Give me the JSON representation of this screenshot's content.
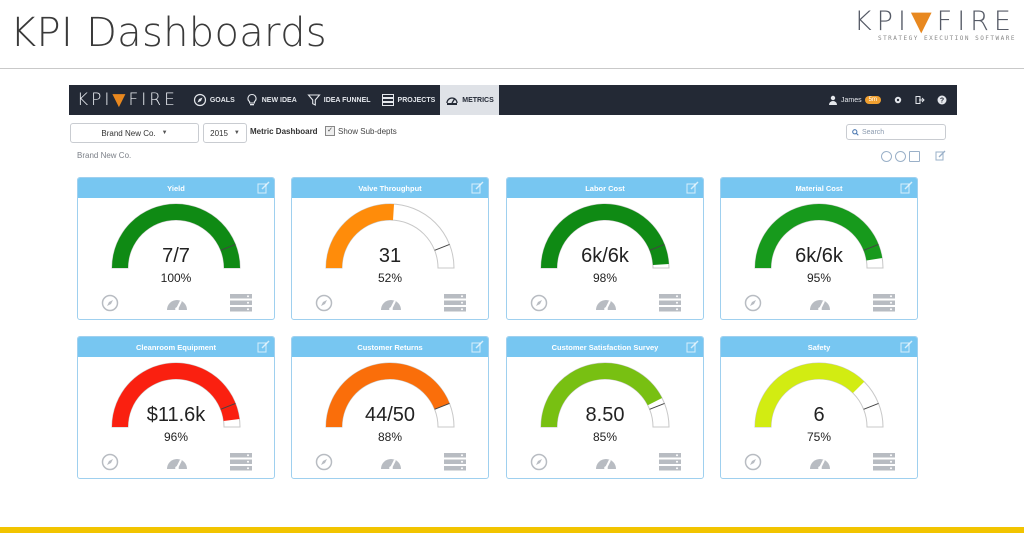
{
  "slide": {
    "title": "KPI Dashboards",
    "logo_word": "KPI",
    "logo_word2": "FIRE",
    "logo_tagline": "STRATEGY EXECUTION SOFTWARE"
  },
  "navbar": {
    "logo_left": "KPI",
    "logo_right": "FIRE",
    "items": [
      {
        "label": "GOALS",
        "icon": "compass-icon"
      },
      {
        "label": "NEW IDEA",
        "icon": "lightbulb-icon"
      },
      {
        "label": "IDEA FUNNEL",
        "icon": "funnel-icon"
      },
      {
        "label": "PROJECTS",
        "icon": "projects-icon"
      },
      {
        "label": "METRICS",
        "icon": "gauge-icon",
        "active": true
      }
    ],
    "user_name": "James",
    "user_badge": "5m"
  },
  "toolbar": {
    "dept_select": "Brand New Co.",
    "year_select": "2015",
    "metric_label": "Metric Dashboard",
    "sub_depts_label": "Show Sub-depts",
    "search_placeholder": "Search"
  },
  "breadcrumb": "Brand New Co.",
  "colors": {
    "nav_bg": "#232935",
    "card_header": "#77c6f1",
    "accent_orange": "#e8881f"
  },
  "cards": [
    {
      "title": "Yield",
      "value": "7/7",
      "percent": "100%",
      "fraction": 1.0,
      "color": "#0f8a14"
    },
    {
      "title": "Valve Throughput",
      "value": "31",
      "percent": "52%",
      "fraction": 0.52,
      "color": "#ff8c0a"
    },
    {
      "title": "Labor Cost",
      "value": "6k/6k",
      "percent": "98%",
      "fraction": 0.98,
      "color": "#0f8a14"
    },
    {
      "title": "Material Cost",
      "value": "6k/6k",
      "percent": "95%",
      "fraction": 0.95,
      "color": "#179a1c"
    },
    {
      "title": "Cleanroom Equipment",
      "value": "$11.6k",
      "percent": "96%",
      "fraction": 0.96,
      "color": "#fa2010"
    },
    {
      "title": "Customer Returns",
      "value": "44/50",
      "percent": "88%",
      "fraction": 0.88,
      "color": "#fa6e0a"
    },
    {
      "title": "Customer Satisfaction Survey",
      "value": "8.50",
      "percent": "85%",
      "fraction": 0.85,
      "color": "#78c012"
    },
    {
      "title": "Safety",
      "value": "6",
      "percent": "75%",
      "fraction": 0.75,
      "color": "#d2ec12"
    }
  ]
}
